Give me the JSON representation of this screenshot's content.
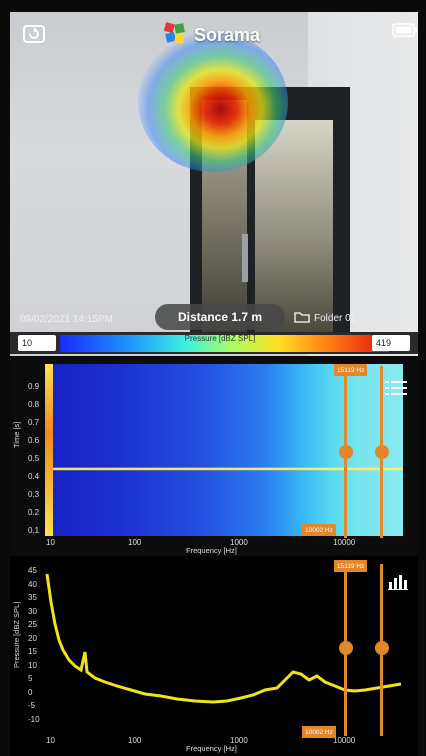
{
  "header": {
    "brand_name": "Sorama",
    "battery_icon": "battery-icon",
    "back_icon": "camera-switch-icon"
  },
  "camera": {
    "timestamp": "09/02/2021 14:15PM",
    "distance": "Distance 1.7 m",
    "folder": "Folder 01"
  },
  "scale": {
    "min": "10",
    "max": "419",
    "label": "Pressure [dBZ SPL]",
    "colors": [
      "#1a2aff",
      "#3cf0e0",
      "#ffe020",
      "#e21010"
    ]
  },
  "spectrogram": {
    "y_axis_label": "Time [s]",
    "x_axis_label": "Frequency [Hz]",
    "x_ticks": [
      "10",
      "100",
      "1000",
      "10000"
    ],
    "y_ticks": [
      "0.1",
      "0.2",
      "0.3",
      "0.4",
      "0.5",
      "0.6",
      "0.7",
      "0.8",
      "0.9"
    ],
    "cursor_tag_top": "15119 Hz",
    "cursor_tag_bottom": "10002 Hz",
    "menu_icon": "list-menu-icon"
  },
  "waveform": {
    "y_axis_label": "Pressure [dBZ SPL]",
    "x_axis_label": "Frequency [Hz]",
    "x_ticks": [
      "10",
      "100",
      "1000",
      "10000"
    ],
    "y_ticks": [
      "45",
      "40",
      "35",
      "30",
      "25",
      "20",
      "15",
      "10",
      "5",
      "0",
      "-5",
      "-10"
    ],
    "cursor_tag_top": "15119 Hz",
    "cursor_tag_bottom": "10002 Hz",
    "chart_icon": "bar-chart-icon",
    "line_color": "#f2e21a",
    "cursor_color": "#e5862b"
  }
}
